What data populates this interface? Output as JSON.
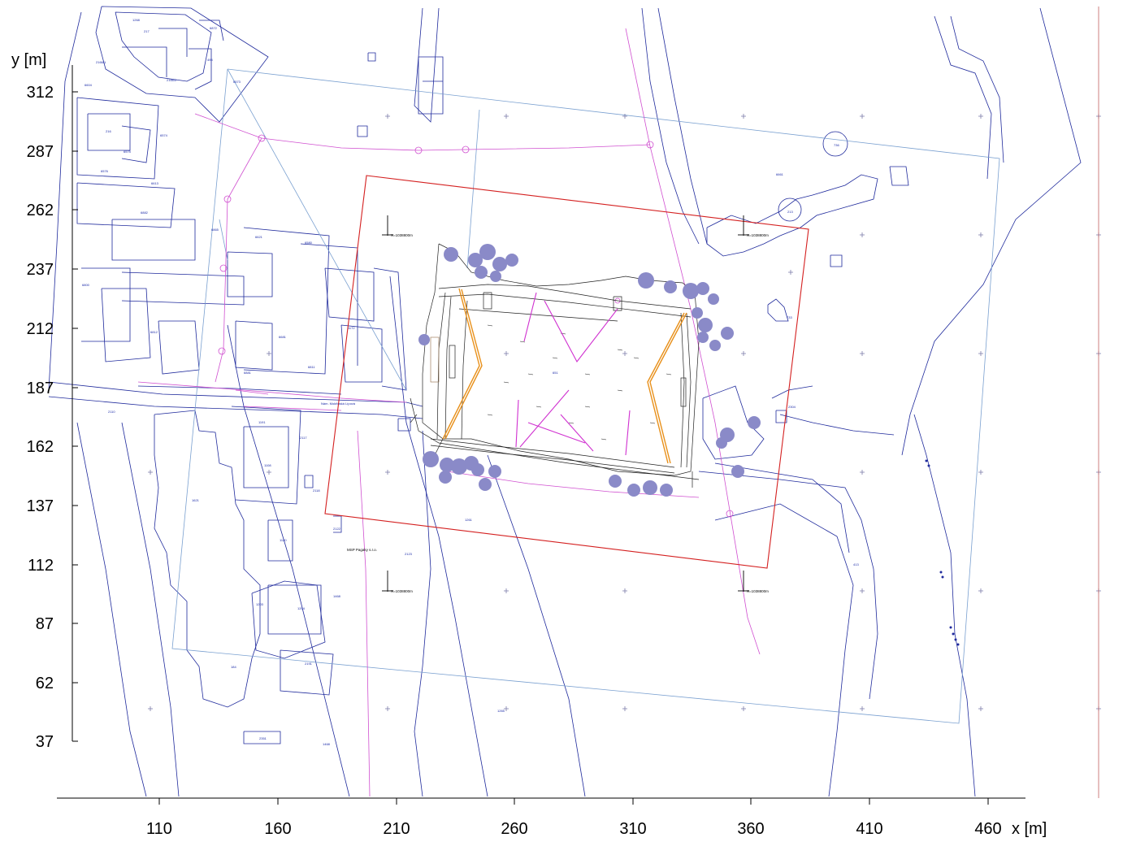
{
  "axes": {
    "y_label": "y [m]",
    "x_label": "x [m]",
    "y_ticks": [
      "312",
      "287",
      "262",
      "237",
      "212",
      "187",
      "162",
      "137",
      "112",
      "87",
      "62",
      "37"
    ],
    "x_ticks": [
      "110",
      "160",
      "210",
      "260",
      "310",
      "360",
      "410",
      "460"
    ]
  },
  "parcels": [
    "1268",
    "217",
    "6872",
    "2166/1",
    "2166/2",
    "495",
    "6573",
    "6604",
    "1158/2",
    "1158",
    "216",
    "6575",
    "6574",
    "6577",
    "6576",
    "6613",
    "6689/3",
    "6882",
    "6865",
    "6580",
    "6621",
    "2116",
    "6800",
    "6608",
    "6812",
    "6811",
    "6611",
    "6881",
    "6681",
    "6842",
    "1172",
    "1169",
    "2110",
    "1191",
    "2117",
    "1108",
    "1621",
    "2118",
    "1120",
    "2110",
    "1203",
    "1204",
    "2111",
    "1468",
    "2191",
    "2149",
    "184",
    "1269",
    "12815",
    "2351",
    "1468",
    "1261",
    "736",
    "6661",
    "6574",
    "213",
    "733",
    "736",
    "2304",
    "413",
    "6682",
    "1265",
    "6611",
    "2122",
    "2123",
    "651"
  ],
  "labels": {
    "company": "MSP Pagaky s.r.o.",
    "coord_a": "X=1038800m",
    "coord_b": "X=1038800m",
    "coord_c": "X=1038800m",
    "coord_d": "X=1038800m",
    "street": "Nám. Mokřinská Lípová"
  },
  "colors": {
    "boundary": "#d42020",
    "cadastral": "#1f2a9c",
    "utility": "#d050d0",
    "grid": "#7aa0d0",
    "crane": "#e8901a",
    "tree": "#8a8ac8",
    "axis": "#000000",
    "edge_line": "#c06060"
  }
}
